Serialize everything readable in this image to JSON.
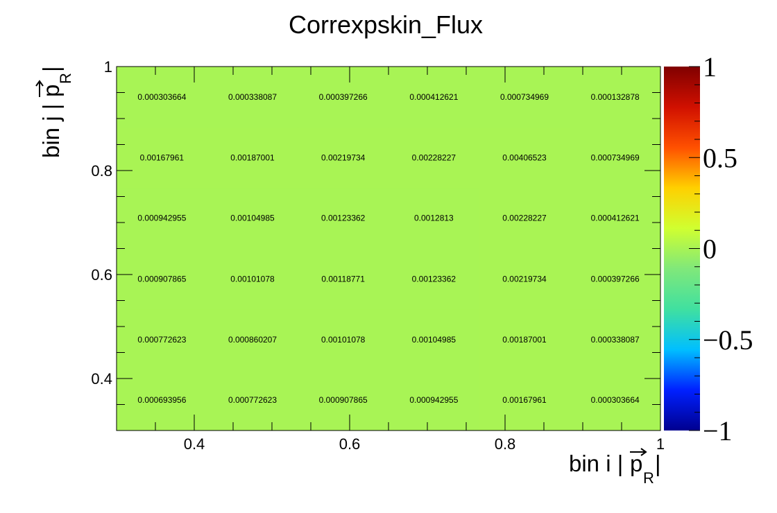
{
  "chart_data": {
    "type": "heatmap",
    "title": "Correxpskin_Flux",
    "xlabel": "bin i |p_R|",
    "ylabel": "bin j |p_R|",
    "xlabel_main": "bin i |",
    "xlabel_p": "p",
    "xlabel_sub": "R",
    "xlabel_end": "|",
    "ylabel_main": "bin j |",
    "ylabel_p": "p",
    "ylabel_sub": "R",
    "ylabel_end": "|",
    "xlim": [
      0.3,
      1.0
    ],
    "ylim": [
      0.3,
      1.0
    ],
    "x_ticks": [
      {
        "value": 0.4,
        "label": "0.4"
      },
      {
        "value": 0.6,
        "label": "0.6"
      },
      {
        "value": 0.8,
        "label": "0.8"
      },
      {
        "value": 1.0,
        "label": "1"
      }
    ],
    "y_ticks": [
      {
        "value": 0.4,
        "label": "0.4"
      },
      {
        "value": 0.6,
        "label": "0.6"
      },
      {
        "value": 0.8,
        "label": "0.8"
      },
      {
        "value": 1.0,
        "label": "1"
      }
    ],
    "x_bin_edges": [
      0.3,
      0.4167,
      0.5333,
      0.65,
      0.7667,
      0.8833,
      1.0
    ],
    "y_bin_edges": [
      0.3,
      0.4167,
      0.5333,
      0.65,
      0.7667,
      0.8833,
      1.0
    ],
    "cells": [
      [
        "0.000693956",
        "0.000772623",
        "0.000907865",
        "0.000942955",
        "0.00167961",
        "0.000303664"
      ],
      [
        "0.000772623",
        "0.000860207",
        "0.00101078",
        "0.00104985",
        "0.00187001",
        "0.000338087"
      ],
      [
        "0.000907865",
        "0.00101078",
        "0.00118771",
        "0.00123362",
        "0.00219734",
        "0.000397266"
      ],
      [
        "0.000942955",
        "0.00104985",
        "0.00123362",
        "0.0012813",
        "0.00228227",
        "0.000412621"
      ],
      [
        "0.00167961",
        "0.00187001",
        "0.00219734",
        "0.00228227",
        "0.00406523",
        "0.000734969"
      ],
      [
        "0.000303664",
        "0.000338087",
        "0.000397266",
        "0.000412621",
        "0.000734969",
        "0.000132878"
      ]
    ],
    "colorbar": {
      "range": [
        -1,
        1
      ],
      "ticks": [
        {
          "value": 1,
          "label": "1"
        },
        {
          "value": 0.5,
          "label": "0.5"
        },
        {
          "value": 0,
          "label": "0"
        },
        {
          "value": -0.5,
          "label": "−0.5"
        },
        {
          "value": -1,
          "label": "−1"
        }
      ],
      "palette": [
        "#00008f",
        "#0020ff",
        "#00bfff",
        "#40e0a0",
        "#80e87a",
        "#d0ff30",
        "#ffd000",
        "#ff5000",
        "#d01000",
        "#800000"
      ]
    },
    "grid": false,
    "legend": "none"
  }
}
